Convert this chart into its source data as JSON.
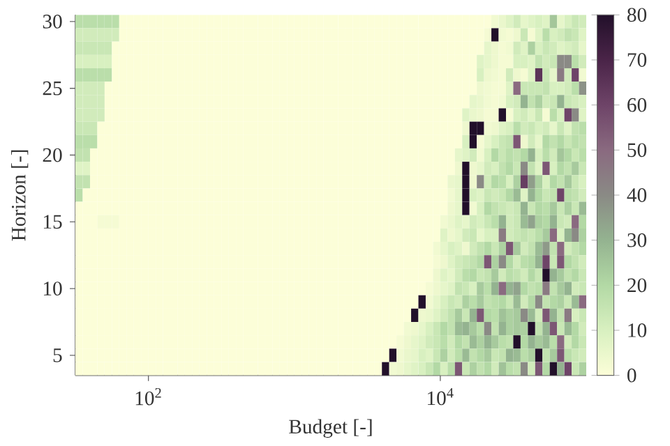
{
  "chart_data": {
    "type": "heatmap",
    "xlabel": "Budget [-]",
    "ylabel": "Horizon [-]",
    "log": "x",
    "x": [
      33.5,
      37.6,
      42.2,
      47.3,
      53.1,
      59.6,
      66.8,
      75,
      84.1,
      94.4,
      106,
      119,
      133,
      150,
      168,
      188,
      211,
      237,
      266,
      299,
      335,
      376,
      422,
      473,
      531,
      596,
      668,
      750,
      841,
      944,
      1059,
      1189,
      1334,
      1496,
      1679,
      1884,
      2113,
      2371,
      2661,
      2985,
      3350,
      3758,
      4217,
      4732,
      5309,
      5957,
      6683,
      7499,
      8414,
      9441,
      10590,
      11890,
      13340,
      14960,
      16790,
      18840,
      21130,
      23710,
      26610,
      29850,
      33500,
      37580,
      42170,
      47320,
      53090,
      59570,
      66830,
      74990,
      84140,
      94410
    ],
    "y": [
      30,
      29,
      28,
      27,
      26,
      25,
      24,
      23,
      22,
      21,
      20,
      19,
      18,
      17,
      16,
      15,
      14,
      13,
      12,
      11,
      10,
      9,
      8,
      7,
      6,
      5,
      4
    ],
    "xlim": [
      31.6,
      100000
    ],
    "ylim": [
      3.5,
      30.5
    ],
    "xticks": [
      {
        "value": 100,
        "label": "10$^{2}$"
      },
      {
        "value": 10000,
        "label": "10$^{4}$"
      }
    ],
    "yticks": [
      5,
      10,
      15,
      20,
      25,
      30
    ],
    "clim": [
      0,
      80
    ],
    "cticks": [
      0,
      10,
      20,
      30,
      40,
      50,
      60,
      70,
      80
    ],
    "cells": [
      [
        18,
        18,
        18,
        18,
        18,
        18,
        0,
        0,
        0,
        0,
        0,
        0,
        0,
        0,
        0,
        0,
        0,
        0,
        0,
        0,
        0,
        0,
        0,
        0,
        0,
        0,
        0,
        0,
        0,
        0,
        0,
        0,
        0,
        0,
        0,
        0,
        0,
        0,
        0,
        0,
        0,
        0,
        0,
        0,
        0,
        0,
        0,
        0,
        0,
        0,
        0,
        0,
        0,
        0,
        0,
        0,
        0,
        3,
        5,
        8,
        12,
        6,
        8,
        10,
        8,
        25,
        6,
        10,
        14,
        12
      ],
      [
        12,
        12,
        12,
        12,
        12,
        12,
        0,
        0,
        0,
        0,
        0,
        0,
        0,
        0,
        0,
        0,
        0,
        0,
        0,
        0,
        0,
        0,
        0,
        0,
        0,
        0,
        0,
        0,
        0,
        0,
        0,
        0,
        0,
        0,
        0,
        0,
        0,
        0,
        0,
        0,
        0,
        0,
        0,
        0,
        0,
        0,
        0,
        0,
        0,
        0,
        0,
        0,
        0,
        0,
        0,
        0,
        2,
        80,
        3,
        2,
        4,
        14,
        2,
        8,
        18,
        10,
        12,
        16,
        14,
        8
      ],
      [
        14,
        14,
        14,
        14,
        14,
        0,
        0,
        0,
        0,
        0,
        0,
        0,
        0,
        0,
        0,
        0,
        0,
        0,
        0,
        0,
        0,
        0,
        0,
        0,
        0,
        0,
        0,
        0,
        0,
        0,
        0,
        0,
        0,
        0,
        0,
        0,
        0,
        0,
        0,
        0,
        0,
        0,
        0,
        0,
        0,
        0,
        0,
        0,
        0,
        0,
        0,
        0,
        0,
        0,
        0,
        0,
        6,
        4,
        2,
        3,
        12,
        8,
        22,
        10,
        14,
        12,
        8,
        10,
        12,
        6
      ],
      [
        10,
        10,
        10,
        10,
        10,
        0,
        0,
        0,
        0,
        0,
        0,
        0,
        0,
        0,
        0,
        0,
        0,
        0,
        0,
        0,
        0,
        0,
        0,
        0,
        0,
        0,
        0,
        0,
        0,
        0,
        0,
        0,
        0,
        0,
        0,
        0,
        0,
        0,
        0,
        0,
        0,
        0,
        0,
        0,
        0,
        0,
        0,
        0,
        0,
        0,
        0,
        0,
        0,
        0,
        0,
        8,
        6,
        4,
        2,
        2,
        10,
        10,
        8,
        16,
        12,
        14,
        40,
        40,
        18,
        12
      ],
      [
        18,
        18,
        18,
        18,
        18,
        0,
        0,
        0,
        0,
        0,
        0,
        0,
        0,
        0,
        0,
        0,
        0,
        0,
        0,
        0,
        0,
        0,
        0,
        0,
        0,
        0,
        0,
        0,
        0,
        0,
        0,
        0,
        0,
        0,
        0,
        0,
        0,
        0,
        0,
        0,
        0,
        0,
        0,
        0,
        0,
        0,
        0,
        0,
        0,
        0,
        0,
        0,
        0,
        0,
        0,
        10,
        4,
        3,
        2,
        12,
        4,
        2,
        8,
        65,
        14,
        6,
        45,
        12,
        60,
        3
      ],
      [
        12,
        12,
        12,
        12,
        0,
        0,
        0,
        0,
        0,
        0,
        0,
        0,
        0,
        0,
        0,
        0,
        0,
        0,
        0,
        0,
        0,
        0,
        0,
        0,
        0,
        0,
        0,
        0,
        0,
        0,
        0,
        0,
        0,
        0,
        0,
        0,
        0,
        0,
        0,
        0,
        0,
        0,
        0,
        0,
        0,
        0,
        0,
        0,
        0,
        0,
        0,
        0,
        0,
        0,
        0,
        4,
        3,
        2,
        2,
        8,
        50,
        14,
        14,
        14,
        16,
        10,
        10,
        12,
        18,
        38
      ],
      [
        12,
        12,
        12,
        12,
        0,
        0,
        0,
        0,
        0,
        0,
        0,
        0,
        0,
        0,
        0,
        0,
        0,
        0,
        0,
        0,
        0,
        0,
        0,
        0,
        0,
        0,
        0,
        0,
        0,
        0,
        0,
        0,
        0,
        0,
        0,
        0,
        0,
        0,
        0,
        0,
        0,
        0,
        0,
        0,
        0,
        0,
        0,
        0,
        0,
        0,
        0,
        0,
        0,
        0,
        6,
        5,
        3,
        2,
        3,
        10,
        12,
        30,
        16,
        22,
        12,
        14,
        30,
        14,
        12,
        10
      ],
      [
        12,
        12,
        12,
        12,
        0,
        0,
        0,
        0,
        0,
        0,
        0,
        0,
        0,
        0,
        0,
        0,
        0,
        0,
        0,
        0,
        0,
        0,
        0,
        0,
        0,
        0,
        0,
        0,
        0,
        0,
        0,
        0,
        0,
        0,
        0,
        0,
        0,
        0,
        0,
        0,
        0,
        0,
        0,
        0,
        0,
        0,
        0,
        0,
        0,
        0,
        0,
        0,
        0,
        8,
        5,
        4,
        2,
        2,
        80,
        2,
        10,
        12,
        8,
        14,
        2,
        18,
        10,
        60,
        40,
        8
      ],
      [
        14,
        14,
        14,
        0,
        0,
        0,
        0,
        0,
        0,
        0,
        0,
        0,
        0,
        0,
        0,
        0,
        0,
        0,
        0,
        0,
        0,
        0,
        0,
        0,
        0,
        0,
        0,
        0,
        0,
        0,
        0,
        0,
        0,
        0,
        0,
        0,
        0,
        0,
        0,
        0,
        0,
        0,
        0,
        0,
        0,
        0,
        0,
        0,
        0,
        0,
        0,
        0,
        0,
        4,
        80,
        80,
        3,
        4,
        8,
        10,
        18,
        12,
        14,
        10,
        12,
        6,
        14,
        8,
        16,
        18
      ],
      [
        18,
        18,
        18,
        0,
        0,
        0,
        0,
        0,
        0,
        0,
        0,
        0,
        0,
        0,
        0,
        0,
        0,
        0,
        0,
        0,
        0,
        0,
        0,
        0,
        0,
        0,
        0,
        0,
        0,
        0,
        0,
        0,
        0,
        0,
        0,
        0,
        0,
        0,
        0,
        0,
        0,
        0,
        0,
        0,
        0,
        0,
        0,
        0,
        0,
        0,
        0,
        0,
        0,
        10,
        80,
        2,
        6,
        10,
        14,
        16,
        55,
        4,
        12,
        6,
        20,
        16,
        20,
        14,
        18,
        16
      ],
      [
        16,
        16,
        0,
        0,
        0,
        0,
        0,
        0,
        0,
        0,
        0,
        0,
        0,
        0,
        0,
        0,
        0,
        0,
        0,
        0,
        0,
        0,
        0,
        0,
        0,
        0,
        0,
        0,
        0,
        0,
        0,
        0,
        0,
        0,
        0,
        0,
        0,
        0,
        0,
        0,
        0,
        0,
        0,
        0,
        0,
        0,
        0,
        0,
        0,
        0,
        0,
        0,
        6,
        8,
        12,
        3,
        10,
        20,
        14,
        18,
        16,
        20,
        30,
        10,
        18,
        12,
        25,
        20,
        14,
        18
      ],
      [
        8,
        8,
        0,
        0,
        0,
        0,
        0,
        0,
        0,
        0,
        0,
        0,
        0,
        0,
        0,
        0,
        0,
        0,
        0,
        0,
        0,
        0,
        0,
        0,
        0,
        0,
        0,
        0,
        0,
        0,
        0,
        0,
        0,
        0,
        0,
        0,
        0,
        0,
        0,
        0,
        0,
        0,
        0,
        0,
        0,
        0,
        0,
        0,
        0,
        0,
        0,
        0,
        4,
        80,
        4,
        6,
        12,
        10,
        16,
        20,
        14,
        40,
        16,
        8,
        55,
        10,
        20,
        16,
        24,
        14
      ],
      [
        16,
        16,
        0,
        0,
        0,
        0,
        0,
        0,
        0,
        0,
        0,
        0,
        0,
        0,
        0,
        0,
        0,
        0,
        0,
        0,
        0,
        0,
        0,
        0,
        0,
        0,
        0,
        0,
        0,
        0,
        0,
        0,
        0,
        0,
        0,
        0,
        0,
        0,
        0,
        0,
        0,
        0,
        0,
        0,
        0,
        0,
        0,
        0,
        0,
        0,
        0,
        5,
        6,
        80,
        4,
        40,
        12,
        20,
        18,
        10,
        22,
        62,
        35,
        22,
        10,
        20,
        16,
        24,
        14,
        10
      ],
      [
        18,
        0,
        0,
        0,
        0,
        0,
        0,
        0,
        0,
        0,
        0,
        0,
        0,
        0,
        0,
        0,
        0,
        0,
        0,
        0,
        0,
        0,
        0,
        0,
        0,
        0,
        0,
        0,
        0,
        0,
        0,
        0,
        0,
        0,
        0,
        0,
        0,
        0,
        0,
        0,
        0,
        0,
        0,
        0,
        0,
        0,
        0,
        0,
        0,
        0,
        0,
        3,
        6,
        80,
        10,
        8,
        14,
        12,
        14,
        20,
        28,
        8,
        30,
        20,
        14,
        16,
        60,
        18,
        16,
        12
      ],
      [
        0,
        0,
        0,
        0,
        0,
        0,
        0,
        0,
        0,
        0,
        0,
        0,
        0,
        0,
        0,
        0,
        0,
        0,
        0,
        0,
        0,
        0,
        0,
        0,
        0,
        0,
        0,
        0,
        0,
        0,
        0,
        0,
        0,
        0,
        0,
        0,
        0,
        0,
        0,
        0,
        0,
        0,
        0,
        0,
        0,
        0,
        0,
        0,
        0,
        0,
        0,
        4,
        6,
        80,
        3,
        10,
        20,
        16,
        14,
        12,
        14,
        30,
        14,
        20,
        18,
        24,
        14,
        22,
        14,
        28
      ],
      [
        0,
        0,
        0,
        2,
        2,
        2,
        0,
        0,
        0,
        0,
        0,
        0,
        0,
        0,
        0,
        0,
        0,
        0,
        0,
        0,
        0,
        0,
        0,
        0,
        0,
        0,
        0,
        0,
        0,
        0,
        0,
        0,
        0,
        0,
        0,
        0,
        0,
        0,
        0,
        0,
        0,
        0,
        0,
        0,
        0,
        0,
        0,
        0,
        0,
        0,
        3,
        5,
        8,
        6,
        12,
        10,
        14,
        18,
        30,
        12,
        14,
        28,
        34,
        22,
        20,
        30,
        14,
        12,
        50,
        20
      ],
      [
        0,
        0,
        0,
        0,
        0,
        0,
        0,
        0,
        0,
        0,
        0,
        0,
        0,
        0,
        0,
        0,
        0,
        0,
        0,
        0,
        0,
        0,
        0,
        0,
        0,
        0,
        0,
        0,
        0,
        0,
        0,
        0,
        0,
        0,
        0,
        0,
        0,
        0,
        0,
        0,
        0,
        0,
        0,
        0,
        0,
        0,
        0,
        0,
        0,
        0,
        8,
        4,
        6,
        12,
        14,
        6,
        10,
        10,
        45,
        12,
        14,
        16,
        14,
        18,
        24,
        50,
        10,
        30,
        40,
        22
      ],
      [
        0,
        0,
        0,
        0,
        0,
        0,
        0,
        0,
        0,
        0,
        0,
        0,
        0,
        0,
        0,
        0,
        0,
        0,
        0,
        0,
        0,
        0,
        0,
        0,
        0,
        0,
        0,
        0,
        0,
        0,
        0,
        0,
        0,
        0,
        0,
        0,
        0,
        0,
        0,
        0,
        0,
        0,
        0,
        0,
        0,
        0,
        0,
        0,
        0,
        3,
        6,
        10,
        8,
        4,
        12,
        16,
        20,
        14,
        22,
        55,
        24,
        12,
        16,
        28,
        36,
        16,
        50,
        12,
        16,
        20
      ],
      [
        0,
        0,
        0,
        0,
        0,
        0,
        0,
        0,
        0,
        0,
        0,
        0,
        0,
        0,
        0,
        0,
        0,
        0,
        0,
        0,
        0,
        0,
        0,
        0,
        0,
        0,
        0,
        0,
        0,
        0,
        0,
        0,
        0,
        0,
        0,
        0,
        0,
        0,
        0,
        0,
        0,
        0,
        0,
        0,
        0,
        0,
        0,
        0,
        0,
        2,
        4,
        8,
        12,
        14,
        16,
        20,
        55,
        22,
        40,
        20,
        12,
        18,
        20,
        30,
        60,
        14,
        55,
        20,
        16,
        12
      ],
      [
        0,
        0,
        0,
        0,
        0,
        0,
        0,
        0,
        0,
        0,
        0,
        0,
        0,
        0,
        0,
        0,
        0,
        0,
        0,
        0,
        0,
        0,
        0,
        0,
        0,
        0,
        0,
        0,
        0,
        0,
        0,
        0,
        0,
        0,
        0,
        0,
        0,
        0,
        0,
        0,
        0,
        0,
        0,
        0,
        0,
        0,
        0,
        0,
        0,
        4,
        8,
        6,
        12,
        18,
        20,
        14,
        16,
        24,
        12,
        18,
        16,
        12,
        20,
        14,
        80,
        30,
        24,
        16,
        20,
        14
      ],
      [
        0,
        0,
        0,
        0,
        0,
        0,
        0,
        0,
        0,
        0,
        0,
        0,
        0,
        0,
        0,
        0,
        0,
        0,
        0,
        0,
        0,
        0,
        0,
        0,
        0,
        0,
        0,
        0,
        0,
        0,
        0,
        0,
        0,
        0,
        0,
        0,
        0,
        0,
        0,
        0,
        0,
        0,
        0,
        0,
        0,
        0,
        0,
        0,
        2,
        4,
        6,
        8,
        16,
        14,
        10,
        24,
        18,
        30,
        50,
        30,
        34,
        20,
        16,
        18,
        45,
        16,
        24,
        30,
        12,
        14
      ],
      [
        0,
        0,
        0,
        0,
        0,
        0,
        0,
        0,
        0,
        0,
        0,
        0,
        0,
        0,
        0,
        0,
        0,
        0,
        0,
        0,
        0,
        0,
        0,
        0,
        0,
        0,
        0,
        0,
        0,
        0,
        0,
        0,
        0,
        0,
        0,
        0,
        0,
        0,
        0,
        0,
        0,
        0,
        0,
        0,
        0,
        0,
        0,
        80,
        3,
        6,
        10,
        14,
        12,
        22,
        18,
        24,
        16,
        18,
        20,
        14,
        28,
        12,
        20,
        40,
        16,
        20,
        22,
        14,
        28,
        50
      ],
      [
        0,
        0,
        0,
        0,
        0,
        0,
        0,
        0,
        0,
        0,
        0,
        0,
        0,
        0,
        0,
        0,
        0,
        0,
        0,
        0,
        0,
        0,
        0,
        0,
        0,
        0,
        0,
        0,
        0,
        0,
        0,
        0,
        0,
        0,
        0,
        0,
        0,
        0,
        0,
        0,
        0,
        0,
        0,
        0,
        0,
        0,
        80,
        4,
        5,
        8,
        12,
        16,
        24,
        14,
        30,
        55,
        20,
        18,
        26,
        22,
        24,
        40,
        28,
        12,
        55,
        30,
        16,
        45,
        10,
        14
      ],
      [
        0,
        0,
        0,
        0,
        0,
        0,
        0,
        0,
        0,
        0,
        0,
        0,
        0,
        0,
        0,
        0,
        0,
        0,
        0,
        0,
        0,
        0,
        0,
        0,
        0,
        0,
        0,
        0,
        0,
        0,
        0,
        0,
        0,
        0,
        0,
        0,
        0,
        0,
        0,
        0,
        0,
        0,
        0,
        0,
        0,
        3,
        4,
        6,
        10,
        14,
        20,
        16,
        28,
        30,
        24,
        18,
        40,
        16,
        30,
        22,
        24,
        22,
        80,
        16,
        30,
        55,
        14,
        28,
        20,
        12
      ],
      [
        0,
        0,
        0,
        0,
        0,
        0,
        0,
        0,
        0,
        0,
        0,
        0,
        0,
        0,
        0,
        0,
        0,
        0,
        0,
        0,
        0,
        0,
        0,
        0,
        0,
        0,
        0,
        0,
        0,
        0,
        0,
        0,
        0,
        0,
        0,
        0,
        0,
        0,
        0,
        0,
        0,
        0,
        0,
        0,
        2,
        4,
        6,
        8,
        12,
        14,
        18,
        12,
        20,
        16,
        28,
        22,
        30,
        24,
        18,
        16,
        80,
        20,
        30,
        24,
        28,
        18,
        50,
        12,
        20,
        14
      ],
      [
        0,
        0,
        0,
        0,
        0,
        0,
        0,
        0,
        0,
        0,
        0,
        0,
        0,
        0,
        0,
        0,
        0,
        0,
        0,
        0,
        0,
        0,
        0,
        0,
        0,
        0,
        0,
        0,
        0,
        0,
        0,
        0,
        0,
        0,
        0,
        0,
        0,
        0,
        0,
        0,
        0,
        0,
        0,
        80,
        3,
        5,
        6,
        10,
        8,
        14,
        22,
        12,
        18,
        28,
        16,
        20,
        24,
        14,
        16,
        30,
        28,
        18,
        22,
        80,
        16,
        24,
        55,
        18,
        14,
        12
      ],
      [
        0,
        0,
        0,
        0,
        0,
        0,
        0,
        0,
        0,
        0,
        0,
        0,
        0,
        0,
        0,
        0,
        0,
        0,
        0,
        0,
        0,
        0,
        0,
        0,
        0,
        0,
        0,
        0,
        0,
        0,
        0,
        0,
        0,
        0,
        0,
        0,
        0,
        0,
        0,
        0,
        0,
        0,
        80,
        3,
        4,
        6,
        8,
        10,
        14,
        20,
        10,
        18,
        55,
        14,
        22,
        16,
        20,
        12,
        26,
        18,
        16,
        40,
        12,
        55,
        20,
        80,
        30,
        60,
        14,
        22
      ]
    ]
  }
}
